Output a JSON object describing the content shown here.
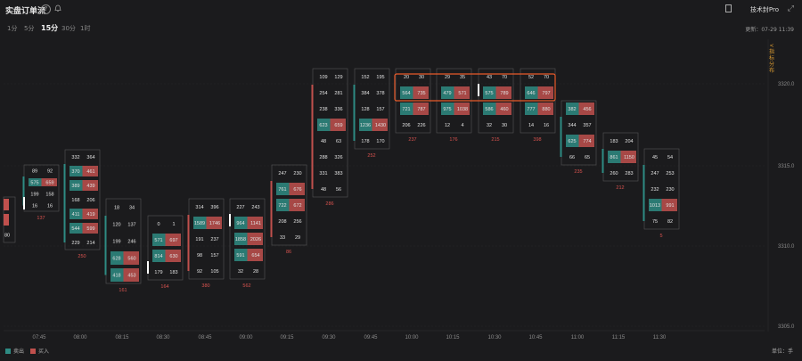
{
  "header": {
    "title": "实盘订单流",
    "help_icon": "?",
    "pro_label": "技术封Pro",
    "updated": "更新：07-29 11:39"
  },
  "tabs": [
    {
      "label": "1分"
    },
    {
      "label": "5分"
    },
    {
      "label": "15分",
      "active": true
    },
    {
      "label": "30分"
    },
    {
      "label": "1时"
    }
  ],
  "side_label": "<指标分布",
  "footer": {
    "sell_label": "卖出",
    "buy_label": "买入",
    "unit": "单位：手"
  },
  "colors": {
    "sell": "#2e8b83",
    "buy": "#c0504d",
    "bg": "#1b1b1d",
    "highlight": "#e85a2a",
    "delta_text": "#d9534f"
  },
  "chart_data": {
    "type": "footprint",
    "y_ticks": [
      "3320.0",
      "3315.0",
      "3310.0",
      "3305.0"
    ],
    "x_ticks": [
      "07:45",
      "08:00",
      "08:15",
      "08:30",
      "08:45",
      "09:00",
      "09:15",
      "09:30",
      "09:45",
      "10:00",
      "10:15",
      "10:30",
      "10:45",
      "11:00",
      "11:15",
      "11:30"
    ],
    "bars": [
      {
        "time": "07:30",
        "delta": "",
        "levels": [
          [
            "",
            ""
          ],
          [
            "",
            ""
          ],
          [
            "80",
            ""
          ]
        ]
      },
      {
        "time": "07:45",
        "delta": "137",
        "levels": [
          [
            "89",
            "92"
          ],
          [
            "575",
            "659"
          ],
          [
            "199",
            "158"
          ],
          [
            "16",
            "16"
          ]
        ]
      },
      {
        "time": "08:00",
        "delta": "250",
        "levels": [
          [
            "332",
            "364"
          ],
          [
            "370",
            "461"
          ],
          [
            "389",
            "439"
          ],
          [
            "168",
            "206"
          ],
          [
            "411",
            "419"
          ],
          [
            "544",
            "599"
          ],
          [
            "229",
            "214"
          ]
        ]
      },
      {
        "time": "08:15",
        "delta": "161",
        "levels": [
          [
            "18",
            "34"
          ],
          [
            "120",
            "137"
          ],
          [
            "199",
            "246"
          ],
          [
            "628",
            "560"
          ],
          [
            "418",
            "453"
          ]
        ]
      },
      {
        "time": "08:30",
        "delta": "164",
        "levels": [
          [
            "0",
            "1"
          ],
          [
            "571",
            "697"
          ],
          [
            "814",
            "630"
          ],
          [
            "179",
            "183"
          ]
        ]
      },
      {
        "time": "08:45",
        "delta": "380",
        "levels": [
          [
            "314",
            "396"
          ],
          [
            "1589",
            "1746"
          ],
          [
            "191",
            "237"
          ],
          [
            "98",
            "157"
          ],
          [
            "92",
            "105"
          ]
        ]
      },
      {
        "time": "09:00",
        "delta": "562",
        "levels": [
          [
            "227",
            "243"
          ],
          [
            "964",
            "1141"
          ],
          [
            "1858",
            "2026"
          ],
          [
            "591",
            "654"
          ],
          [
            "32",
            "28"
          ]
        ]
      },
      {
        "time": "09:15",
        "delta": "86",
        "levels": [
          [
            "247",
            "230"
          ],
          [
            "761",
            "676"
          ],
          [
            "722",
            "672"
          ],
          [
            "208",
            "256"
          ],
          [
            "33",
            "29"
          ]
        ]
      },
      {
        "time": "09:30",
        "delta": "286",
        "levels": [
          [
            "109",
            "129"
          ],
          [
            "254",
            "281"
          ],
          [
            "238",
            "336"
          ],
          [
            "623",
            "659"
          ],
          [
            "48",
            "63"
          ],
          [
            "288",
            "326"
          ],
          [
            "331",
            "383"
          ],
          [
            "48",
            "56"
          ]
        ]
      },
      {
        "time": "09:45",
        "delta": "252",
        "levels": [
          [
            "152",
            "195"
          ],
          [
            "384",
            "378"
          ],
          [
            "128",
            "157"
          ],
          [
            "1236",
            "1430"
          ],
          [
            "178",
            "170"
          ]
        ]
      },
      {
        "time": "10:00",
        "delta": "237",
        "levels": [
          [
            "20",
            "30"
          ],
          [
            "564",
            "735"
          ],
          [
            "721",
            "787"
          ],
          [
            "206",
            "226"
          ]
        ]
      },
      {
        "time": "10:15",
        "delta": "176",
        "levels": [
          [
            "29",
            "35"
          ],
          [
            "479",
            "571"
          ],
          [
            "975",
            "1038"
          ],
          [
            "12",
            "4"
          ]
        ]
      },
      {
        "time": "10:30",
        "delta": "215",
        "levels": [
          [
            "43",
            "70"
          ],
          [
            "575",
            "789"
          ],
          [
            "586",
            "460"
          ],
          [
            "32",
            "30"
          ]
        ]
      },
      {
        "time": "10:45",
        "delta": "398",
        "levels": [
          [
            "52",
            "70"
          ],
          [
            "646",
            "797"
          ],
          [
            "777",
            "880"
          ],
          [
            "14",
            "16"
          ]
        ]
      },
      {
        "time": "11:00",
        "delta": "235",
        "levels": [
          [
            "382",
            "456"
          ],
          [
            "344",
            "357"
          ],
          [
            "625",
            "774"
          ],
          [
            "66",
            "65"
          ]
        ]
      },
      {
        "time": "11:15",
        "delta": "212",
        "levels": [
          [
            "183",
            "204"
          ],
          [
            "861",
            "1150"
          ],
          [
            "260",
            "283"
          ]
        ]
      },
      {
        "time": "11:30",
        "delta": "5",
        "levels": [
          [
            "45",
            "54"
          ],
          [
            "247",
            "253"
          ],
          [
            "232",
            "230"
          ],
          [
            "1013",
            "991"
          ],
          [
            "75",
            "82"
          ]
        ]
      }
    ]
  }
}
